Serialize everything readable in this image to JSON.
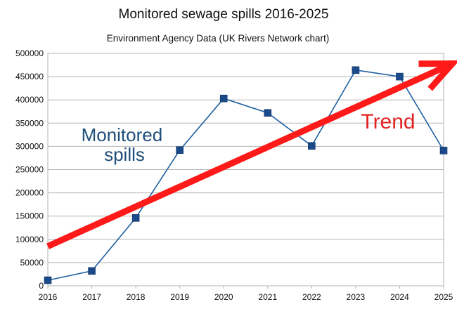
{
  "chart_data": {
    "type": "line",
    "title": "Monitored sewage spills 2016-2025",
    "subtitle": "Environment Agency Data (UK Rivers Network chart)",
    "xlabel": "",
    "ylabel": "",
    "x": [
      2016,
      2017,
      2018,
      2019,
      2020,
      2021,
      2022,
      2023,
      2024,
      2025
    ],
    "x_tick_labels": [
      "2016",
      "2017",
      "2018",
      "2019",
      "2020",
      "2021",
      "2022",
      "2023",
      "2024",
      "2025"
    ],
    "series": [
      {
        "name": "",
        "values": [
          12000,
          32000,
          146000,
          292000,
          403000,
          372000,
          301000,
          464000,
          450000,
          291000
        ]
      }
    ],
    "ylim": [
      0,
      500000
    ],
    "y_ticks": [
      0,
      50000,
      100000,
      150000,
      200000,
      250000,
      300000,
      350000,
      400000,
      450000,
      500000
    ],
    "y_tick_labels": [
      "0",
      "50000",
      "100000",
      "150000",
      "200000",
      "250000",
      "300000",
      "350000",
      "400000",
      "450000",
      "500000"
    ],
    "grid": "horizontal",
    "annotations": [
      {
        "text_lines": [
          "Monitored",
          "spills"
        ],
        "color": "#1f4e79"
      },
      {
        "text": "Trend",
        "color": "#e32222"
      }
    ],
    "trend_arrow": {
      "x_start": 2016,
      "y_start": 85000,
      "x_end": 2025.2,
      "y_end": 478000,
      "color": "#ff1a1a"
    },
    "colors": {
      "series": "#1f5fa0",
      "marker": "#1a4a8a",
      "trend": "#ff1a1a"
    }
  }
}
